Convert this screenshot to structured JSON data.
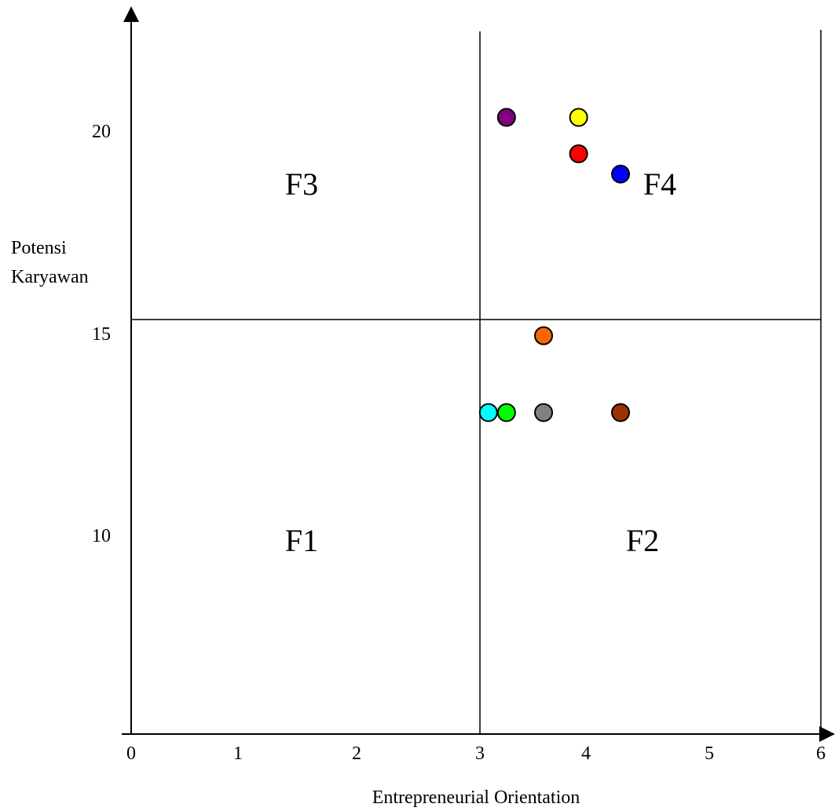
{
  "chart_data": {
    "type": "scatter",
    "title": "",
    "xlabel": "Entrepreneurial Orientation",
    "ylabel_lines": [
      "Potensi",
      "Karyawan"
    ],
    "xlim": [
      0,
      6
    ],
    "x_ticks": [
      "0",
      "1",
      "2",
      "3",
      "4",
      "5",
      "6"
    ],
    "y_ticks": [
      "10",
      "15",
      "20"
    ],
    "grid": false,
    "dividers": {
      "x": 3,
      "y": 15
    },
    "quadrant_labels": [
      "F1",
      "F2",
      "F3",
      "F4"
    ],
    "points": [
      {
        "x": 3.25,
        "y": 20.3,
        "color": "#800080"
      },
      {
        "x": 3.93,
        "y": 20.3,
        "color": "#ffff00"
      },
      {
        "x": 3.93,
        "y": 19.4,
        "color": "#ff0000"
      },
      {
        "x": 4.28,
        "y": 18.9,
        "color": "#0000ff"
      },
      {
        "x": 3.6,
        "y": 14.9,
        "color": "#ff6600"
      },
      {
        "x": 3.08,
        "y": 13.0,
        "color": "#00ffff"
      },
      {
        "x": 3.25,
        "y": 13.0,
        "color": "#00ff00"
      },
      {
        "x": 3.6,
        "y": 13.0,
        "color": "#808080"
      },
      {
        "x": 4.28,
        "y": 13.0,
        "color": "#993300"
      }
    ]
  }
}
